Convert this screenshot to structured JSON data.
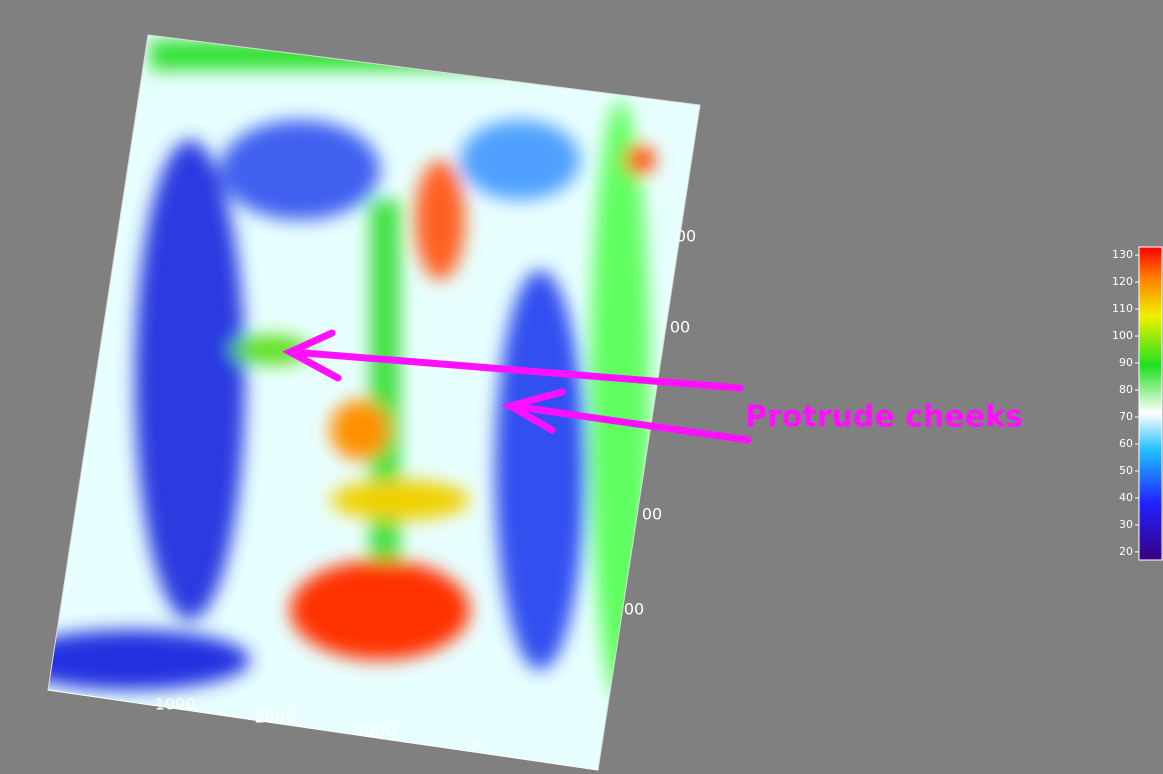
{
  "chart_data": {
    "type": "surface",
    "annotation": "Protrude cheeks",
    "x_label": "x",
    "xticks": [
      1000,
      2000,
      3000
    ],
    "edge_labels": [
      "00",
      "00",
      "00",
      "00"
    ],
    "colorbar": {
      "lim": [
        17,
        133
      ],
      "ticks": [
        20,
        30,
        40,
        50,
        60,
        70,
        80,
        90,
        100,
        110,
        120,
        130
      ]
    }
  }
}
